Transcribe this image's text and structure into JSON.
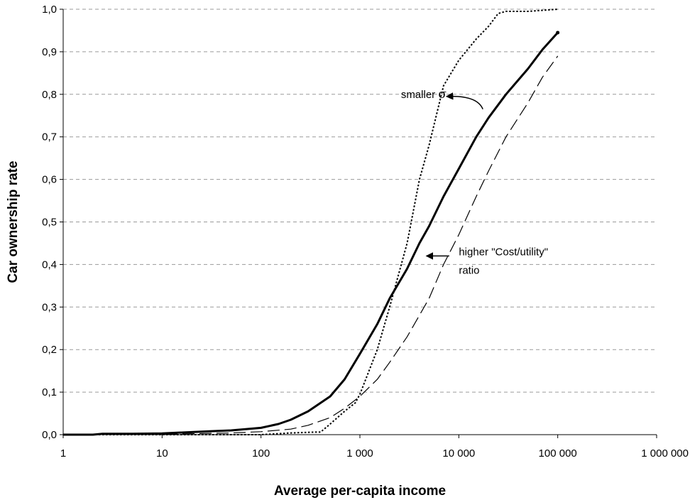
{
  "chart_data": {
    "type": "line",
    "xlabel": "Average per-capita income",
    "ylabel": "Car ownership rate",
    "x_scale": "log",
    "xlim": [
      1,
      1000000
    ],
    "ylim": [
      0,
      1.0
    ],
    "grid": {
      "y_major": true,
      "style": "dashed",
      "x": false
    },
    "x_ticks": [
      {
        "value": 1,
        "label": "1"
      },
      {
        "value": 10,
        "label": "10"
      },
      {
        "value": 100,
        "label": "100"
      },
      {
        "value": 1000,
        "label": "1 000"
      },
      {
        "value": 10000,
        "label": "10 000"
      },
      {
        "value": 100000,
        "label": "100 000"
      },
      {
        "value": 1000000,
        "label": "1 000 000"
      }
    ],
    "y_ticks": [
      {
        "value": 0.0,
        "label": "0,0"
      },
      {
        "value": 0.1,
        "label": "0,1"
      },
      {
        "value": 0.2,
        "label": "0,2"
      },
      {
        "value": 0.3,
        "label": "0,3"
      },
      {
        "value": 0.4,
        "label": "0,4"
      },
      {
        "value": 0.5,
        "label": "0,5"
      },
      {
        "value": 0.6,
        "label": "0,6"
      },
      {
        "value": 0.7,
        "label": "0,7"
      },
      {
        "value": 0.8,
        "label": "0,8"
      },
      {
        "value": 0.9,
        "label": "0,9"
      },
      {
        "value": 1.0,
        "label": "1,0"
      }
    ],
    "series": [
      {
        "style": "solid-thick",
        "color": "#000000",
        "points": [
          [
            1,
            0.0
          ],
          [
            2,
            0.0
          ],
          [
            2.5,
            0.002
          ],
          [
            5,
            0.002
          ],
          [
            10,
            0.003
          ],
          [
            20,
            0.006
          ],
          [
            30,
            0.008
          ],
          [
            50,
            0.01
          ],
          [
            70,
            0.013
          ],
          [
            100,
            0.016
          ],
          [
            150,
            0.025
          ],
          [
            200,
            0.035
          ],
          [
            300,
            0.055
          ],
          [
            500,
            0.09
          ],
          [
            700,
            0.13
          ],
          [
            1000,
            0.19
          ],
          [
            1500,
            0.26
          ],
          [
            2000,
            0.32
          ],
          [
            3000,
            0.39
          ],
          [
            4000,
            0.45
          ],
          [
            5000,
            0.49
          ],
          [
            7000,
            0.56
          ],
          [
            10000,
            0.625
          ],
          [
            15000,
            0.7
          ],
          [
            20000,
            0.745
          ],
          [
            30000,
            0.8
          ],
          [
            50000,
            0.86
          ],
          [
            70000,
            0.905
          ],
          [
            100000,
            0.945
          ]
        ]
      },
      {
        "style": "dotted",
        "color": "#000000",
        "points": [
          [
            1,
            0.0
          ],
          [
            100,
            0.0
          ],
          [
            200,
            0.004
          ],
          [
            350,
            0.006
          ],
          [
            400,
            0.006
          ],
          [
            500,
            0.025
          ],
          [
            700,
            0.055
          ],
          [
            900,
            0.075
          ],
          [
            1000,
            0.095
          ],
          [
            1500,
            0.2
          ],
          [
            2000,
            0.3
          ],
          [
            3000,
            0.45
          ],
          [
            4000,
            0.6
          ],
          [
            5000,
            0.68
          ],
          [
            7000,
            0.82
          ],
          [
            10000,
            0.88
          ],
          [
            15000,
            0.93
          ],
          [
            20000,
            0.96
          ],
          [
            25000,
            0.99
          ],
          [
            30000,
            0.995
          ],
          [
            50000,
            0.995
          ],
          [
            100000,
            1.0
          ]
        ]
      },
      {
        "style": "dashed-long",
        "color": "#000000",
        "points": [
          [
            1,
            0.0
          ],
          [
            10,
            0.001
          ],
          [
            50,
            0.004
          ],
          [
            100,
            0.007
          ],
          [
            200,
            0.013
          ],
          [
            300,
            0.022
          ],
          [
            500,
            0.04
          ],
          [
            700,
            0.062
          ],
          [
            1000,
            0.09
          ],
          [
            1500,
            0.13
          ],
          [
            2000,
            0.17
          ],
          [
            3000,
            0.23
          ],
          [
            5000,
            0.32
          ],
          [
            7000,
            0.4
          ],
          [
            10000,
            0.47
          ],
          [
            15000,
            0.56
          ],
          [
            20000,
            0.62
          ],
          [
            30000,
            0.7
          ],
          [
            50000,
            0.78
          ],
          [
            70000,
            0.84
          ],
          [
            100000,
            0.89
          ]
        ]
      }
    ],
    "annotations": [
      {
        "text": "smaller ",
        "symbol": "σ",
        "x": 2600,
        "y": 0.8,
        "arrow_to": [
          7500,
          0.795
        ],
        "arrow_from": [
          17500,
          0.765
        ]
      },
      {
        "text": "higher \"Cost/utility\"",
        "text_line2": "ratio",
        "x": 10000,
        "y": 0.4,
        "arrow_from": [
          8000,
          0.42
        ],
        "arrow_to": [
          4700,
          0.42
        ]
      }
    ]
  }
}
